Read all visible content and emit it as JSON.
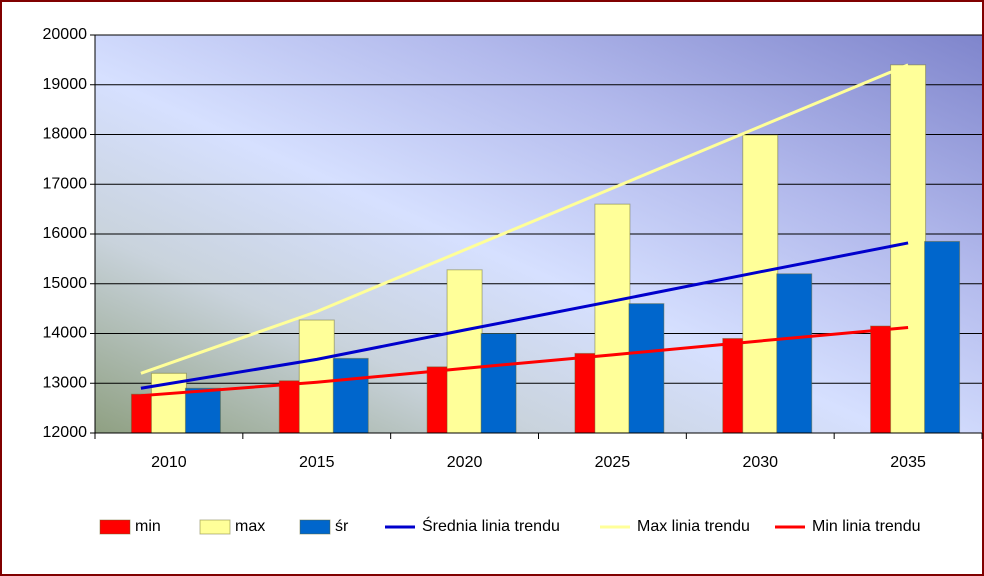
{
  "chart_data": {
    "type": "bar",
    "categories": [
      "2010",
      "2015",
      "2020",
      "2025",
      "2030",
      "2035"
    ],
    "series": [
      {
        "name": "min",
        "type": "bar",
        "color": "#ff0000",
        "values": [
          12780,
          13050,
          13330,
          13600,
          13900,
          14150
        ]
      },
      {
        "name": "max",
        "type": "bar",
        "color": "#ffff99",
        "values": [
          13200,
          14270,
          15280,
          16600,
          17990,
          19400
        ]
      },
      {
        "name": "śr",
        "type": "bar",
        "color": "#0066cc",
        "values": [
          12900,
          13500,
          14000,
          14600,
          15200,
          15850
        ]
      },
      {
        "name": "Średnia linia trendu",
        "type": "line",
        "color": "#0000cc",
        "values": [
          12900,
          13480,
          14070,
          14650,
          15240,
          15820
        ]
      },
      {
        "name": "Max linia trendu",
        "type": "line",
        "color": "#ffff99",
        "values": [
          13200,
          14440,
          15680,
          16920,
          18160,
          19400
        ]
      },
      {
        "name": "Min linia trendu",
        "type": "line",
        "color": "#ff0000",
        "values": [
          12750,
          13020,
          13300,
          13570,
          13850,
          14120
        ]
      }
    ],
    "ylim": [
      12000,
      20000
    ],
    "yticks": [
      12000,
      13000,
      14000,
      15000,
      16000,
      17000,
      18000,
      19000,
      20000
    ],
    "grid": true,
    "legend": "bottom"
  }
}
